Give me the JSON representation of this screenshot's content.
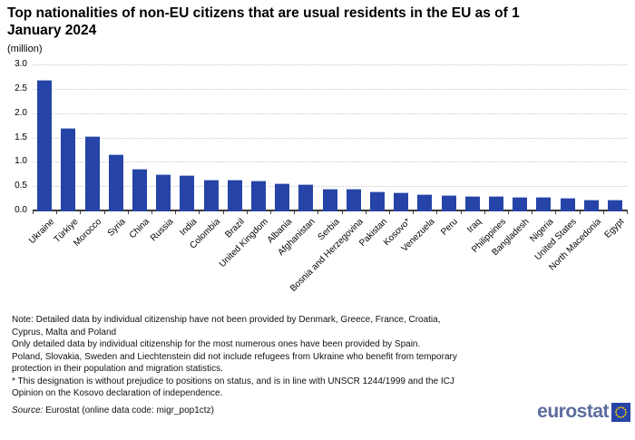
{
  "chart_data": {
    "type": "bar",
    "title": "Top nationalities of non-EU citizens that are usual residents in the EU as of 1 January 2024",
    "subtitle": "(million)",
    "unit": "million",
    "categories": [
      "Ukraine",
      "Türkiye",
      "Morocco",
      "Syria",
      "China",
      "Russia",
      "India",
      "Colombia",
      "Brazil",
      "United Kingdom",
      "Albania",
      "Afghanistan",
      "Serbia",
      "Bosnia and Herzegovina",
      "Pakistan",
      "Kosovo*",
      "Venezuela",
      "Peru",
      "Iraq",
      "Philippines",
      "Bangladesh",
      "Nigeria",
      "United States",
      "North Macedonia",
      "Egypt"
    ],
    "values": [
      2.68,
      1.7,
      1.52,
      1.16,
      0.86,
      0.75,
      0.72,
      0.64,
      0.64,
      0.61,
      0.55,
      0.54,
      0.45,
      0.44,
      0.4,
      0.37,
      0.34,
      0.31,
      0.3,
      0.3,
      0.28,
      0.28,
      0.27,
      0.23,
      0.22
    ],
    "ylim": [
      0,
      3.0
    ],
    "ytick_step": 0.5,
    "grid": "horizontal-dotted",
    "legend_position": "none",
    "bar_color": "#2644a7",
    "axis_color": "#3c3c3c",
    "gridline_color": "#c9c9c9"
  },
  "notes": [
    "Note: Detailed data by individual citizenship have not been provided by Denmark, Greece, France, Croatia,",
    "Cyprus, Malta and Poland",
    "Only detailed data by individual citizenship for the most numerous ones have been provided by Spain.",
    "Poland, Slovakia, Sweden and Liechtenstein did not include refugees from Ukraine who benefit from temporary",
    "protection in their population and migration statistics.",
    "* This designation is without prejudice to positions on status, and is in line with UNSCR 1244/1999 and the ICJ",
    "Opinion on the Kosovo declaration of independence."
  ],
  "source": {
    "label": "Source:",
    "text": " Eurostat (online data code: migr_pop1ctz)"
  },
  "logo": {
    "text": "eurostat",
    "text_color": "#5c6d9f",
    "square_color": "#2644a7",
    "star_color": "#ffd100"
  }
}
